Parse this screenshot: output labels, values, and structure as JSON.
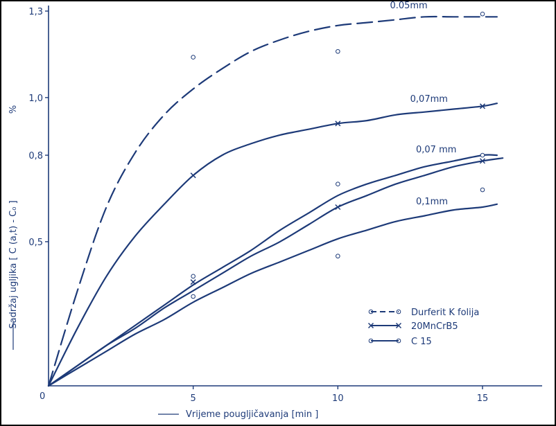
{
  "chart_data": {
    "type": "line",
    "xlabel": "Vrijeme pougljičavanja  [min ]",
    "ylabel": "Sadržaj ugljika  [ C (a,t) - C₀ ]",
    "y_unit": "%",
    "origin_label": "0",
    "x_ticks": [
      "5",
      "10",
      "15"
    ],
    "y_ticks": [
      "0,5",
      "0,8",
      "1,0",
      "1,3"
    ],
    "xlim": [
      0,
      17
    ],
    "ylim": [
      0,
      1.33
    ],
    "grid": false,
    "legend_position": "bottom-right",
    "legend": [
      {
        "label": "Durferit K folija",
        "line": "dashed",
        "marker": "circle"
      },
      {
        "label": "20MnCrB5",
        "line": "solid",
        "marker": "x"
      },
      {
        "label": "C 15",
        "line": "solid",
        "marker": "circle"
      }
    ],
    "series": [
      {
        "label": "0.05mm",
        "style": "dashed",
        "curve": [
          [
            0,
            0
          ],
          [
            1,
            0.33
          ],
          [
            2,
            0.62
          ],
          [
            3,
            0.81
          ],
          [
            4,
            0.94
          ],
          [
            5,
            1.03
          ],
          [
            6,
            1.1
          ],
          [
            7,
            1.16
          ],
          [
            8,
            1.2
          ],
          [
            9,
            1.23
          ],
          [
            10,
            1.25
          ],
          [
            11,
            1.26
          ],
          [
            12,
            1.27
          ],
          [
            13,
            1.28
          ],
          [
            14,
            1.28
          ],
          [
            15,
            1.28
          ],
          [
            15.5,
            1.28
          ]
        ],
        "markers": {
          "shape": "circle",
          "points": [
            [
              5,
              1.14
            ],
            [
              10,
              1.16
            ],
            [
              15,
              1.29
            ]
          ]
        }
      },
      {
        "label": "0,07mm",
        "style": "solid",
        "curve": [
          [
            0,
            0
          ],
          [
            1,
            0.2
          ],
          [
            2,
            0.38
          ],
          [
            3,
            0.52
          ],
          [
            4,
            0.63
          ],
          [
            5,
            0.73
          ],
          [
            6,
            0.8
          ],
          [
            7,
            0.84
          ],
          [
            8,
            0.87
          ],
          [
            9,
            0.89
          ],
          [
            10,
            0.91
          ],
          [
            11,
            0.92
          ],
          [
            12,
            0.94
          ],
          [
            13,
            0.95
          ],
          [
            14,
            0.96
          ],
          [
            15,
            0.97
          ],
          [
            15.5,
            0.98
          ]
        ],
        "markers": {
          "shape": "x",
          "points": [
            [
              5,
              0.73
            ],
            [
              10,
              0.91
            ],
            [
              15,
              0.97
            ]
          ]
        }
      },
      {
        "label": "0,07 mm",
        "style": "solid",
        "curve": [
          [
            0,
            0
          ],
          [
            1,
            0.07
          ],
          [
            2,
            0.14
          ],
          [
            3,
            0.21
          ],
          [
            4,
            0.28
          ],
          [
            5,
            0.35
          ],
          [
            6,
            0.41
          ],
          [
            7,
            0.47
          ],
          [
            8,
            0.54
          ],
          [
            9,
            0.6
          ],
          [
            10,
            0.66
          ],
          [
            11,
            0.7
          ],
          [
            12,
            0.73
          ],
          [
            13,
            0.76
          ],
          [
            14,
            0.78
          ],
          [
            15,
            0.8
          ],
          [
            15.5,
            0.8
          ]
        ],
        "markers": {
          "shape": "circle",
          "points": [
            [
              5,
              0.38
            ],
            [
              10,
              0.7
            ],
            [
              15,
              0.8
            ]
          ]
        }
      },
      {
        "label": "",
        "style": "solid",
        "curve": [
          [
            0,
            0
          ],
          [
            1,
            0.07
          ],
          [
            2,
            0.14
          ],
          [
            3,
            0.2
          ],
          [
            4,
            0.27
          ],
          [
            5,
            0.33
          ],
          [
            6,
            0.39
          ],
          [
            7,
            0.45
          ],
          [
            8,
            0.5
          ],
          [
            9,
            0.56
          ],
          [
            10,
            0.62
          ],
          [
            11,
            0.66
          ],
          [
            12,
            0.7
          ],
          [
            13,
            0.73
          ],
          [
            14,
            0.76
          ],
          [
            15,
            0.78
          ],
          [
            15.7,
            0.79
          ]
        ],
        "markers": {
          "shape": "x",
          "points": [
            [
              5,
              0.36
            ],
            [
              10,
              0.62
            ],
            [
              15,
              0.78
            ]
          ]
        }
      },
      {
        "label": "0,1mm",
        "style": "solid",
        "curve": [
          [
            0,
            0
          ],
          [
            1,
            0.06
          ],
          [
            2,
            0.12
          ],
          [
            3,
            0.18
          ],
          [
            4,
            0.23
          ],
          [
            5,
            0.29
          ],
          [
            6,
            0.34
          ],
          [
            7,
            0.39
          ],
          [
            8,
            0.43
          ],
          [
            9,
            0.47
          ],
          [
            10,
            0.51
          ],
          [
            11,
            0.54
          ],
          [
            12,
            0.57
          ],
          [
            13,
            0.59
          ],
          [
            14,
            0.61
          ],
          [
            15,
            0.62
          ],
          [
            15.5,
            0.63
          ]
        ],
        "markers": {
          "shape": "circle",
          "points": [
            [
              5,
              0.31
            ],
            [
              10,
              0.45
            ],
            [
              15,
              0.68
            ]
          ]
        }
      }
    ]
  }
}
